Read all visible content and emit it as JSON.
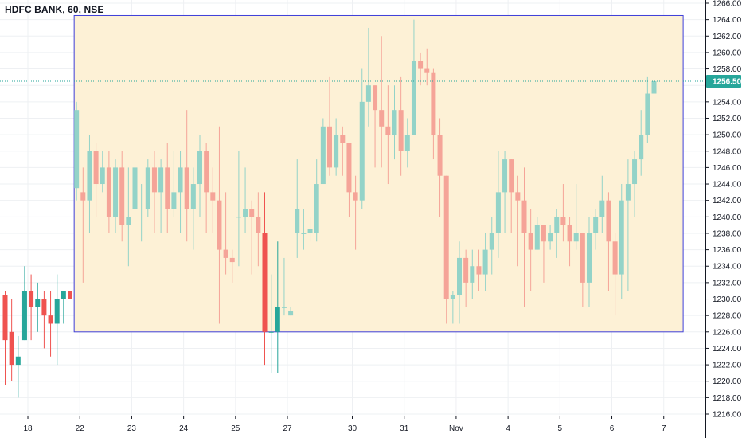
{
  "header": {
    "title": "HDFC BANK, 60, NSE"
  },
  "colors": {
    "up_body": "#26a69a",
    "down_body": "#ef5350",
    "up_body_faded": "#93d3c8",
    "down_body_faded": "#f5a498",
    "highlight_fill": "#fdf1d6",
    "highlight_border": "#3f3fd9",
    "grid": "#eef0f3",
    "last_price_bg": "#26a69a"
  },
  "price_tag": {
    "label": "1256.50"
  },
  "chart_data": {
    "type": "candlestick",
    "title": "HDFC BANK, 60, NSE",
    "ylim": [
      1215,
      1267
    ],
    "y_ticks": [
      "1216.00",
      "1218.00",
      "1220.00",
      "1222.00",
      "1224.00",
      "1226.00",
      "1228.00",
      "1230.00",
      "1232.00",
      "1234.00",
      "1236.00",
      "1238.00",
      "1240.00",
      "1242.00",
      "1244.00",
      "1246.00",
      "1248.00",
      "1250.00",
      "1252.00",
      "1254.00",
      "1256.00",
      "1258.00",
      "1260.00",
      "1262.00",
      "1264.00",
      "1266.00"
    ],
    "x_ticks": [
      {
        "label": "18",
        "index": 3.5
      },
      {
        "label": "22",
        "index": 11.5
      },
      {
        "label": "23",
        "index": 19.5
      },
      {
        "label": "24",
        "index": 27.5
      },
      {
        "label": "25",
        "index": 35.5
      },
      {
        "label": "27",
        "index": 43.5
      },
      {
        "label": "30",
        "index": 53.5
      },
      {
        "label": "31",
        "index": 61.5
      },
      {
        "label": "Nov",
        "index": 69.5
      },
      {
        "label": "4",
        "index": 77.5
      },
      {
        "label": "5",
        "index": 85.5
      },
      {
        "label": "6",
        "index": 93.5
      },
      {
        "label": "7",
        "index": 101.5
      }
    ],
    "last_price": 1256.5,
    "highlight_range": {
      "from_index": 11,
      "to_index": 104,
      "low": 1226,
      "high": 1264.5
    },
    "candles": [
      [
        1230.5,
        1225,
        1231,
        1219.5
      ],
      [
        1226,
        1222,
        1230,
        1220
      ],
      [
        1222,
        1223,
        1225.5,
        1218
      ],
      [
        1225,
        1231,
        1234,
        1225
      ],
      [
        1231,
        1229,
        1233,
        1225
      ],
      [
        1229,
        1230,
        1232,
        1226
      ],
      [
        1230,
        1228,
        1231,
        1224
      ],
      [
        1228,
        1227,
        1231,
        1223
      ],
      [
        1227,
        1230,
        1233,
        1222
      ],
      [
        1230,
        1231,
        1231,
        1227
      ],
      [
        1231,
        1230,
        1231,
        1230
      ],
      [
        1243.5,
        1253,
        1254,
        1242
      ],
      [
        1243,
        1242,
        1246,
        1232
      ],
      [
        1242,
        1248,
        1250,
        1238
      ],
      [
        1248,
        1244,
        1249,
        1240
      ],
      [
        1244,
        1246,
        1248,
        1243
      ],
      [
        1246,
        1240,
        1248,
        1238
      ],
      [
        1240,
        1246,
        1247,
        1238
      ],
      [
        1246,
        1239,
        1248,
        1237
      ],
      [
        1239,
        1240,
        1246,
        1234
      ],
      [
        1241,
        1246,
        1248,
        1234
      ],
      [
        1241,
        1241,
        1244,
        1237
      ],
      [
        1241,
        1246,
        1247,
        1240
      ],
      [
        1246,
        1243,
        1248,
        1238
      ],
      [
        1243,
        1246,
        1247,
        1238
      ],
      [
        1246,
        1241,
        1249,
        1238
      ],
      [
        1241,
        1243,
        1248,
        1240
      ],
      [
        1243,
        1246,
        1248,
        1238
      ],
      [
        1246,
        1241,
        1253,
        1237
      ],
      [
        1241,
        1244,
        1246,
        1236
      ],
      [
        1244,
        1248,
        1250,
        1240
      ],
      [
        1248,
        1243,
        1249,
        1238
      ],
      [
        1243,
        1242,
        1246,
        1238
      ],
      [
        1242,
        1236,
        1251,
        1227
      ],
      [
        1236,
        1235,
        1243,
        1233
      ],
      [
        1235,
        1234.5,
        1236,
        1232
      ],
      [
        1240,
        1240,
        1248,
        1234
      ],
      [
        1240,
        1241,
        1246,
        1238
      ],
      [
        1241,
        1240,
        1242,
        1233
      ],
      [
        1240,
        1238,
        1243,
        1234
      ],
      [
        1238,
        1226,
        1243,
        1222
      ],
      [
        1226,
        1226,
        1233,
        1221
      ],
      [
        1226,
        1229,
        1237,
        1221
      ],
      [
        1229,
        1229,
        1235,
        1228
      ],
      [
        1228,
        1228.5,
        1229,
        1228
      ],
      [
        1238,
        1241,
        1247,
        1235
      ],
      [
        1238,
        1238,
        1241,
        1236
      ],
      [
        1238,
        1238.5,
        1240,
        1237
      ],
      [
        1238,
        1244,
        1247,
        1237
      ],
      [
        1244,
        1251,
        1252,
        1245
      ],
      [
        1251,
        1246,
        1257,
        1245
      ],
      [
        1246,
        1250,
        1252,
        1245
      ],
      [
        1250,
        1249,
        1251,
        1245
      ],
      [
        1249,
        1243,
        1249,
        1240
      ],
      [
        1243,
        1242,
        1245,
        1236
      ],
      [
        1242,
        1254,
        1258,
        1241
      ],
      [
        1254,
        1256,
        1263,
        1251
      ],
      [
        1256,
        1253,
        1256,
        1246
      ],
      [
        1253,
        1251,
        1262,
        1246
      ],
      [
        1251,
        1250,
        1256,
        1244
      ],
      [
        1250,
        1253,
        1256,
        1247
      ],
      [
        1253,
        1248,
        1257,
        1245
      ],
      [
        1248,
        1250,
        1252,
        1246
      ],
      [
        1250,
        1259,
        1264,
        1255
      ],
      [
        1259,
        1258,
        1260,
        1256
      ],
      [
        1258,
        1257.5,
        1260.5,
        1256
      ],
      [
        1257.5,
        1250,
        1258,
        1247
      ],
      [
        1250,
        1245,
        1252,
        1240
      ],
      [
        1245,
        1230,
        1245,
        1227
      ],
      [
        1230,
        1230.5,
        1231,
        1227
      ],
      [
        1230.5,
        1235,
        1237,
        1227
      ],
      [
        1235,
        1232,
        1236,
        1229
      ],
      [
        1232,
        1234,
        1236,
        1230
      ],
      [
        1234,
        1233,
        1236,
        1231
      ],
      [
        1233,
        1236,
        1238,
        1231
      ],
      [
        1236,
        1238,
        1240,
        1233
      ],
      [
        1238,
        1243,
        1248,
        1235
      ],
      [
        1243,
        1247,
        1248,
        1238
      ],
      [
        1247,
        1243,
        1247,
        1238
      ],
      [
        1243,
        1242,
        1245,
        1234
      ],
      [
        1242,
        1238,
        1246,
        1229
      ],
      [
        1238,
        1236,
        1241,
        1231
      ],
      [
        1236,
        1239,
        1240,
        1236
      ],
      [
        1239,
        1237,
        1239,
        1232
      ],
      [
        1237,
        1238,
        1239,
        1236
      ],
      [
        1238,
        1240,
        1241,
        1235
      ],
      [
        1240,
        1239,
        1244,
        1237
      ],
      [
        1239,
        1237,
        1240,
        1234
      ],
      [
        1237,
        1238,
        1244,
        1236
      ],
      [
        1238,
        1232,
        1238,
        1229
      ],
      [
        1232,
        1238,
        1240,
        1229
      ],
      [
        1238,
        1240,
        1241,
        1236
      ],
      [
        1240,
        1242,
        1245,
        1238
      ],
      [
        1242,
        1237,
        1243,
        1231
      ],
      [
        1237,
        1233,
        1238,
        1228
      ],
      [
        1233,
        1242,
        1244,
        1230
      ],
      [
        1242,
        1244,
        1247,
        1231
      ],
      [
        1244,
        1247,
        1248,
        1240
      ],
      [
        1247,
        1250,
        1253,
        1245
      ],
      [
        1250,
        1255,
        1257,
        1249
      ],
      [
        1255,
        1256.5,
        1259,
        1255
      ]
    ]
  }
}
